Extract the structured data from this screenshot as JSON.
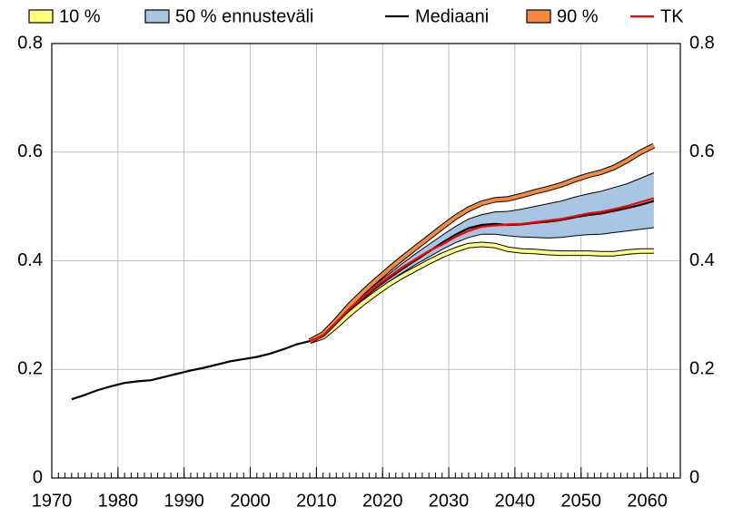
{
  "chart_data": {
    "type": "line",
    "x": [
      1973,
      1975,
      1977,
      1979,
      1981,
      1983,
      1985,
      1987,
      1989,
      1991,
      1993,
      1995,
      1997,
      1999,
      2001,
      2003,
      2005,
      2007,
      2009,
      2011,
      2013,
      2015,
      2017,
      2019,
      2021,
      2023,
      2025,
      2027,
      2029,
      2031,
      2033,
      2035,
      2037,
      2039,
      2041,
      2043,
      2045,
      2047,
      2049,
      2051,
      2053,
      2055,
      2057,
      2059,
      2061
    ],
    "series": [
      {
        "name": "10 %",
        "color": "#ffff80",
        "outline": true,
        "values": [
          null,
          null,
          null,
          null,
          null,
          null,
          null,
          null,
          null,
          null,
          null,
          null,
          null,
          null,
          null,
          null,
          null,
          null,
          0.252,
          0.26,
          0.28,
          0.302,
          0.322,
          0.34,
          0.357,
          0.372,
          0.385,
          0.398,
          0.41,
          0.42,
          0.428,
          0.43,
          0.428,
          0.421,
          0.418,
          0.417,
          0.415,
          0.414,
          0.414,
          0.414,
          0.413,
          0.413,
          0.416,
          0.418,
          0.418
        ]
      },
      {
        "name": "50 % ennusteväli",
        "color": "#a9c5e4",
        "lower": [
          null,
          null,
          null,
          null,
          null,
          null,
          null,
          null,
          null,
          null,
          null,
          null,
          null,
          null,
          null,
          null,
          null,
          null,
          0.252,
          0.261,
          0.283,
          0.306,
          0.326,
          0.345,
          0.362,
          0.378,
          0.393,
          0.407,
          0.421,
          0.433,
          0.443,
          0.449,
          0.449,
          0.446,
          0.444,
          0.443,
          0.442,
          0.443,
          0.446,
          0.448,
          0.449,
          0.452,
          0.455,
          0.458,
          0.461
        ],
        "upper": [
          null,
          null,
          null,
          null,
          null,
          null,
          null,
          null,
          null,
          null,
          null,
          null,
          null,
          null,
          null,
          null,
          null,
          null,
          0.252,
          0.264,
          0.288,
          0.314,
          0.337,
          0.357,
          0.376,
          0.395,
          0.413,
          0.43,
          0.447,
          0.463,
          0.477,
          0.485,
          0.49,
          0.491,
          0.495,
          0.5,
          0.505,
          0.51,
          0.517,
          0.523,
          0.528,
          0.535,
          0.542,
          0.552,
          0.562
        ]
      },
      {
        "name": "Mediaani",
        "color": "#000000",
        "values": [
          0.145,
          0.153,
          0.162,
          0.169,
          0.175,
          0.178,
          0.18,
          0.186,
          0.192,
          0.198,
          0.203,
          0.209,
          0.215,
          0.219,
          0.223,
          0.229,
          0.237,
          0.246,
          0.252,
          0.262,
          0.285,
          0.31,
          0.33,
          0.35,
          0.368,
          0.385,
          0.401,
          0.417,
          0.433,
          0.448,
          0.46,
          0.466,
          0.468,
          0.466,
          0.467,
          0.47,
          0.472,
          0.475,
          0.48,
          0.484,
          0.487,
          0.492,
          0.497,
          0.503,
          0.51
        ]
      },
      {
        "name": "90 %",
        "color": "#f58a3c",
        "outline": true,
        "values": [
          null,
          null,
          null,
          null,
          null,
          null,
          null,
          null,
          null,
          null,
          null,
          null,
          null,
          null,
          null,
          null,
          null,
          null,
          0.252,
          0.265,
          0.29,
          0.318,
          0.342,
          0.364,
          0.385,
          0.405,
          0.424,
          0.443,
          0.462,
          0.48,
          0.495,
          0.506,
          0.512,
          0.514,
          0.52,
          0.527,
          0.533,
          0.54,
          0.549,
          0.557,
          0.563,
          0.572,
          0.585,
          0.6,
          0.612
        ]
      },
      {
        "name": "TK",
        "color": "#ff0000",
        "values": [
          null,
          null,
          null,
          null,
          null,
          null,
          null,
          null,
          null,
          null,
          null,
          null,
          null,
          null,
          null,
          null,
          null,
          null,
          0.252,
          0.263,
          0.287,
          0.312,
          0.333,
          0.353,
          0.371,
          0.388,
          0.403,
          0.418,
          0.43,
          0.444,
          0.455,
          0.463,
          0.465,
          0.467,
          0.468,
          0.471,
          0.474,
          0.477,
          0.482,
          0.487,
          0.49,
          0.495,
          0.501,
          0.508,
          0.515
        ]
      }
    ],
    "xlim": [
      1970,
      2065
    ],
    "xticks": [
      1970,
      1980,
      1990,
      2000,
      2010,
      2020,
      2030,
      2040,
      2050,
      2060
    ],
    "ylim": [
      0,
      0.8
    ],
    "yticks": [
      0,
      0.2,
      0.4,
      0.6,
      0.8
    ],
    "grid": true
  }
}
